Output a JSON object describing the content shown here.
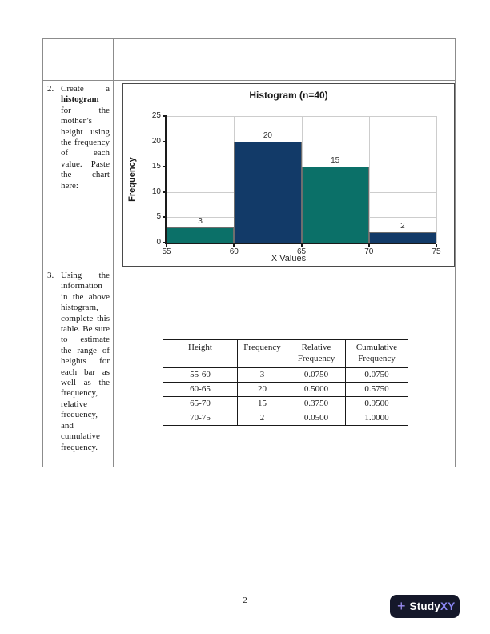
{
  "page": {
    "number": "2"
  },
  "worksheet": {
    "task2": {
      "number": "2.",
      "segments": [
        {
          "t": "Create a ",
          "b": false
        },
        {
          "t": "histogram",
          "b": true
        },
        {
          "t": " for the mother’s height using the frequency of each value. Paste the chart here:",
          "b": false
        }
      ]
    },
    "task3": {
      "number": "3.",
      "text": "Using the information in the above histogram, complete this table. Be sure to estimate the range of heights for each bar as well as the frequency, relative frequency, and cumulative frequency."
    }
  },
  "chart_data": {
    "type": "bar",
    "title": "Histogram (n=40)",
    "xlabel": "X Values",
    "ylabel": "Frequency",
    "categories": [
      "55-60",
      "60-65",
      "65-70",
      "70-75"
    ],
    "bins": [
      [
        55,
        60
      ],
      [
        60,
        65
      ],
      [
        65,
        70
      ],
      [
        70,
        75
      ]
    ],
    "values": [
      3,
      20,
      15,
      2
    ],
    "data_labels": [
      "3",
      "20",
      "15",
      "2"
    ],
    "bar_colors": [
      "#0b7068",
      "#123a68",
      "#0b7068",
      "#123a68"
    ],
    "x_ticks": [
      55,
      60,
      65,
      70,
      75
    ],
    "y_ticks": [
      0,
      5,
      10,
      15,
      20,
      25
    ],
    "ylim": [
      0,
      25
    ],
    "xlim": [
      55,
      75
    ],
    "grid": true,
    "legend": false
  },
  "freq_table": {
    "headers": [
      "Height",
      "Frequency",
      "Relative Frequency",
      "Cumulative Frequency"
    ],
    "rows": [
      [
        "55-60",
        "3",
        "0.0750",
        "0.0750"
      ],
      [
        "60-65",
        "20",
        "0.5000",
        "0.5750"
      ],
      [
        "65-70",
        "15",
        "0.3750",
        "0.9500"
      ],
      [
        "70-75",
        "2",
        "0.0500",
        "1.0000"
      ]
    ]
  },
  "brand": {
    "plus": "+",
    "primary": "Study",
    "secondary": "XY",
    "badge_bg": "#15182a",
    "accent": "#8b87f7",
    "plus_color": "#9a8cf0"
  }
}
